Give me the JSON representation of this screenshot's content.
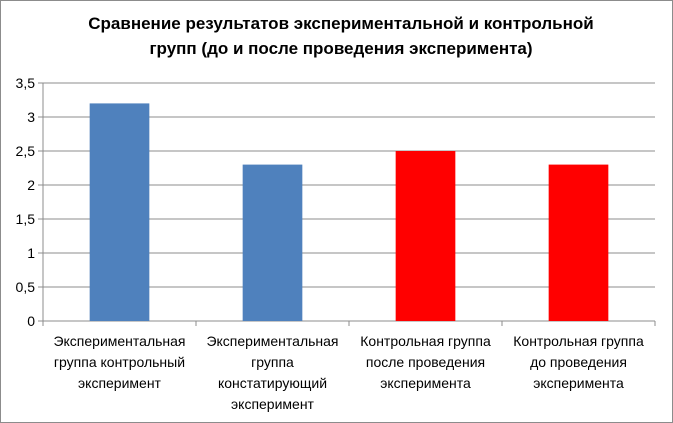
{
  "chart_data": {
    "type": "bar",
    "title_lines": [
      "Сравнение результатов экспериментальной и контрольной",
      "групп (до и после проведения эксперимента)"
    ],
    "categories": [
      [
        "Экспериментальная",
        "группа контрольный",
        "эксперимент"
      ],
      [
        "Экспериментальная",
        "группа",
        "констатирующий",
        "эксперимент"
      ],
      [
        "Контрольная группа",
        "после проведения",
        "эксперимента"
      ],
      [
        "Контрольная группа",
        "до проведения",
        "эксперимента"
      ]
    ],
    "values": [
      3.2,
      2.3,
      2.5,
      2.3
    ],
    "bar_colors": [
      "#4f81bd",
      "#4f81bd",
      "#ff0000",
      "#ff0000"
    ],
    "yticks": [
      "0",
      "0,5",
      "1",
      "1,5",
      "2",
      "2,5",
      "3",
      "3,5"
    ],
    "ylim": [
      0,
      3.5
    ],
    "grid": true,
    "legend": "none"
  }
}
